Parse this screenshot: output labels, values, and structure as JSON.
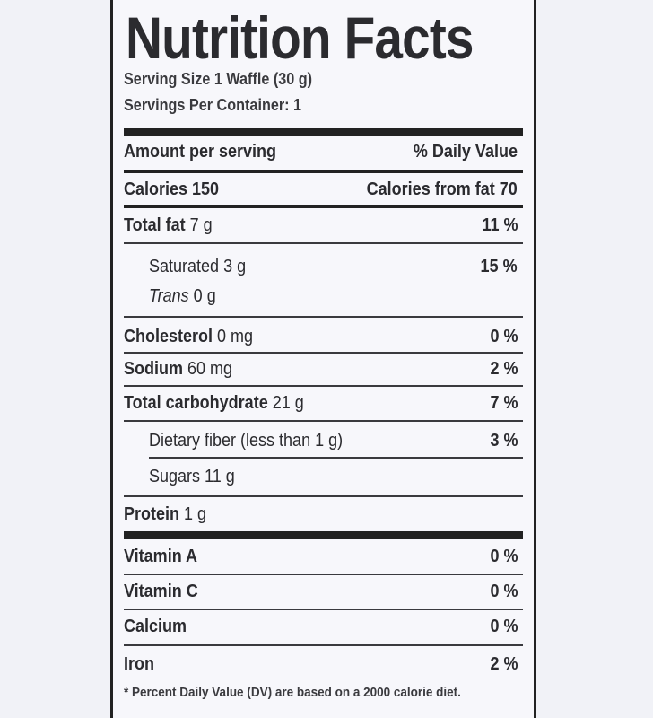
{
  "title": "Nutrition Facts",
  "serving_size": "Serving Size 1 Waffle (30 g)",
  "servings_per_container": "Servings Per Container: 1",
  "header": {
    "amount": "Amount per serving",
    "dv": "% Daily Value"
  },
  "calories": {
    "label": "Calories 150",
    "from_fat": "Calories from fat 70"
  },
  "nutrients": [
    {
      "name": "Total fat",
      "amount": "7 g",
      "dv": "11 %"
    },
    {
      "name": "Saturated",
      "amount": "3 g",
      "dv": "15 %"
    },
    {
      "name": "Trans",
      "amount": "0 g",
      "dv": ""
    },
    {
      "name": "Cholesterol",
      "amount": "0 mg",
      "dv": "0 %"
    },
    {
      "name": "Sodium",
      "amount": "60 mg",
      "dv": "2 %"
    },
    {
      "name": "Total carbohydrate",
      "amount": "21 g",
      "dv": "7 %"
    },
    {
      "name": "Dietary fiber",
      "amount": "(less than 1 g)",
      "dv": "3 %"
    },
    {
      "name": "Sugars",
      "amount": "11 g",
      "dv": ""
    },
    {
      "name": "Protein",
      "amount": "1 g",
      "dv": ""
    }
  ],
  "vitamins": [
    {
      "name": "Vitamin A",
      "dv": "0 %"
    },
    {
      "name": "Vitamin C",
      "dv": "0 %"
    },
    {
      "name": "Calcium",
      "dv": "0 %"
    },
    {
      "name": "Iron",
      "dv": "2 %"
    }
  ],
  "footnote": "* Percent Daily Value (DV) are based on a 2000 calorie diet."
}
